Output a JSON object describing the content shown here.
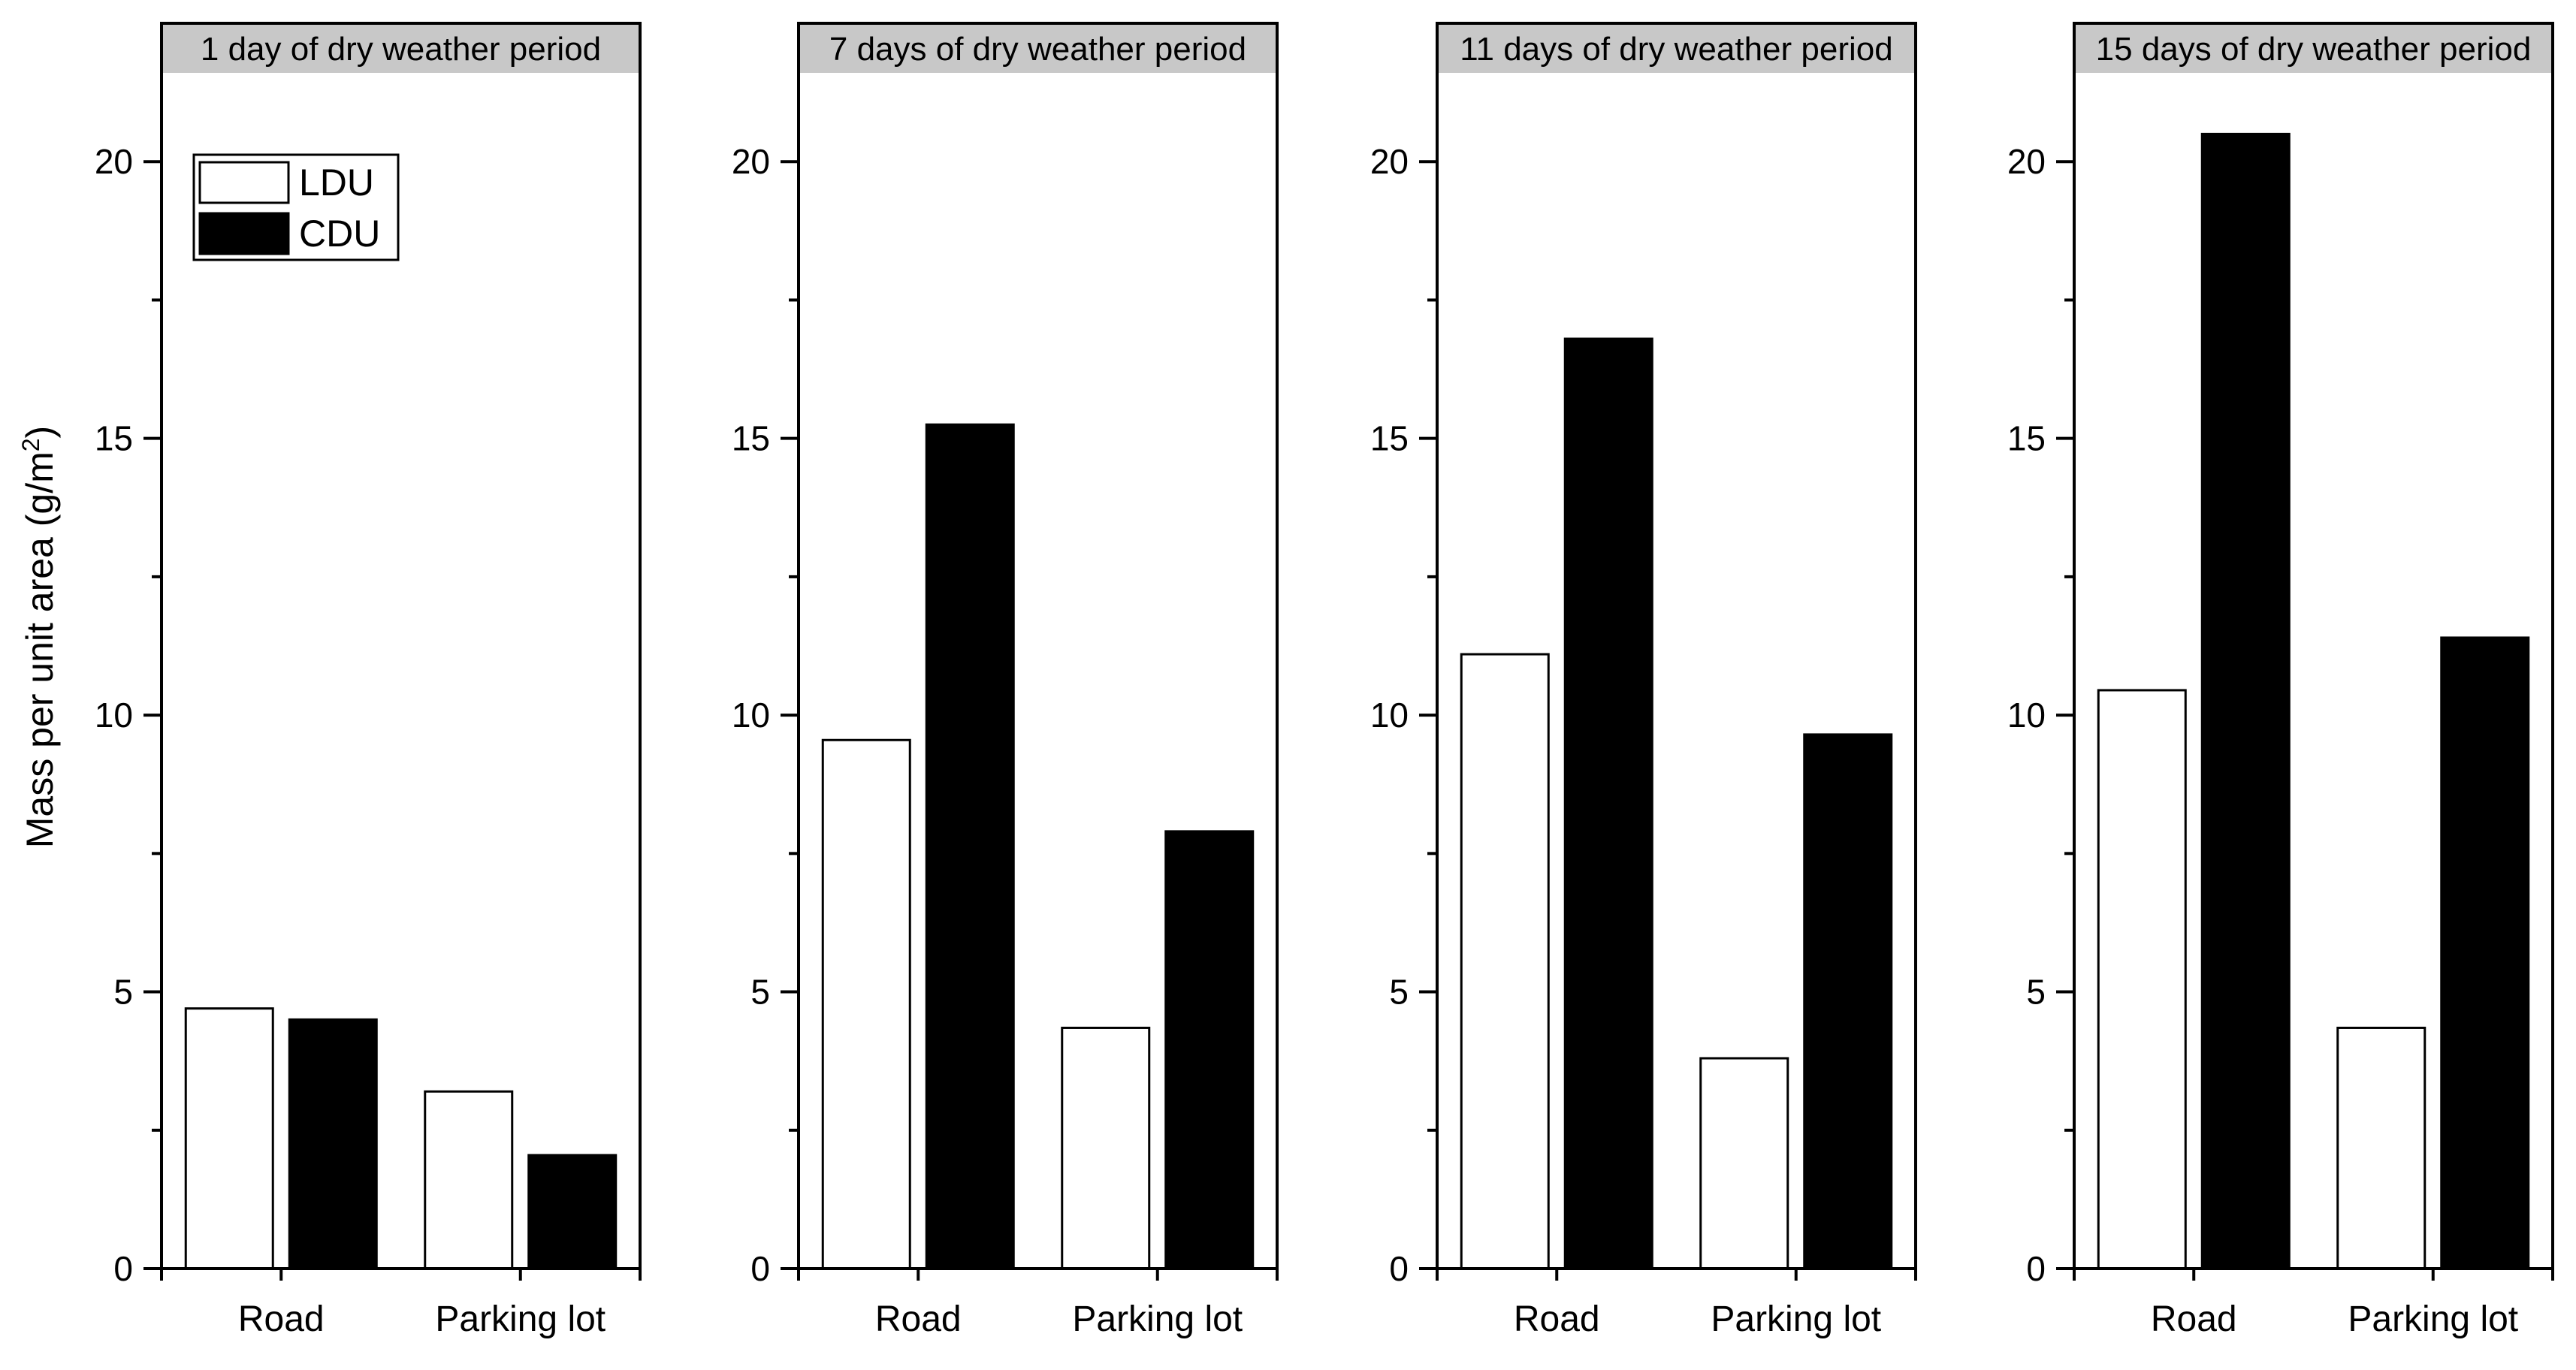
{
  "chart_data": {
    "type": "bar",
    "ylabel": "Mass per unit area (g/m²)",
    "ylabel_main": "Mass per unit area (g/m",
    "ylabel_sup": "2",
    "ylabel_close": ")",
    "ylim": [
      0,
      22.5
    ],
    "yticks": [
      "0",
      "5",
      "10",
      "15",
      "20"
    ],
    "categories": [
      "Road",
      "Parking lot"
    ],
    "legend": {
      "placement": "top-left of first panel",
      "entries": [
        {
          "name": "LDU",
          "color": "#ffffff"
        },
        {
          "name": "CDU",
          "color": "#000000"
        }
      ]
    },
    "grid": false,
    "panels": [
      {
        "title": "1  day  of dry weather period",
        "series": [
          {
            "name": "LDU",
            "values": [
              4.7,
              3.2
            ]
          },
          {
            "name": "CDU",
            "values": [
              4.5,
              2.05
            ]
          }
        ]
      },
      {
        "title": "7 days of dry weather period",
        "series": [
          {
            "name": "LDU",
            "values": [
              9.55,
              4.35
            ]
          },
          {
            "name": "CDU",
            "values": [
              15.25,
              7.9
            ]
          }
        ]
      },
      {
        "title": "11 days of dry weather period",
        "series": [
          {
            "name": "LDU",
            "values": [
              11.1,
              3.8
            ]
          },
          {
            "name": "CDU",
            "values": [
              16.8,
              9.65
            ]
          }
        ]
      },
      {
        "title": "15 days of dry weather period",
        "series": [
          {
            "name": "LDU",
            "values": [
              10.45,
              4.35
            ]
          },
          {
            "name": "CDU",
            "values": [
              20.5,
              11.4
            ]
          }
        ]
      }
    ]
  },
  "colors": {
    "strip": "#c8c8c8",
    "ldu_fill": "#ffffff",
    "cdu_fill": "#000000",
    "axis": "#000000"
  }
}
